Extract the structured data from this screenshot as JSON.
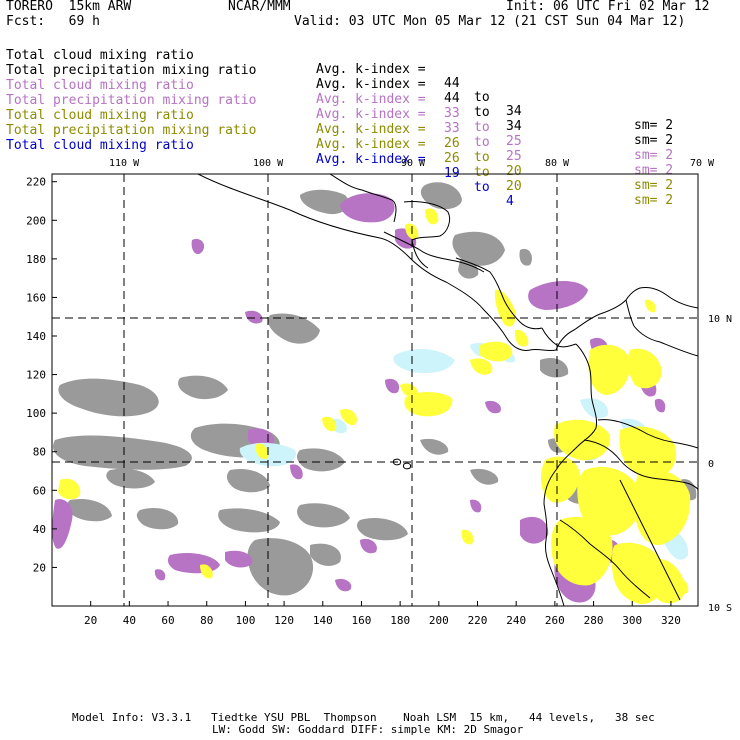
{
  "header": {
    "model": "TORERO  15km ARW",
    "center": "NCAR/MMM",
    "init": "Init: 06 UTC Fri 02 Mar 12",
    "fcst": "Fcst:   69 h",
    "valid": "Valid: 03 UTC Mon 05 Mar 12 (21 CST Sun 04 Mar 12)"
  },
  "legend": [
    {
      "field": "Total cloud mixing ratio",
      "kindex_label": "Avg. k-index =",
      "from": "44",
      "to_word": "to",
      "to": "34",
      "sm": "sm= 2",
      "color": "#000000"
    },
    {
      "field": "Total precipitation mixing ratio",
      "kindex_label": "Avg. k-index =",
      "from": "44",
      "to_word": "to",
      "to": "34",
      "sm": "sm= 2",
      "color": "#000000"
    },
    {
      "field": "Total cloud mixing ratio",
      "kindex_label": "Avg. k-index =",
      "from": "33",
      "to_word": "to",
      "to": "25",
      "sm": "sm= 2",
      "color": "#b773c4"
    },
    {
      "field": "Total precipitation mixing ratio",
      "kindex_label": "Avg. k-index =",
      "from": "33",
      "to_word": "to",
      "to": "25",
      "sm": "sm= 2",
      "color": "#b773c4"
    },
    {
      "field": "Total cloud mixing ratio",
      "kindex_label": "Avg. k-index =",
      "from": "26",
      "to_word": "to",
      "to": "20",
      "sm": "sm= 2",
      "color": "#8c8c00"
    },
    {
      "field": "Total precipitation mixing ratio",
      "kindex_label": "Avg. k-index =",
      "from": "26",
      "to_word": "to",
      "to": "20",
      "sm": "sm= 2",
      "color": "#8c8c00"
    },
    {
      "field": "Total cloud mixing ratio",
      "kindex_label": "Avg. k-index =",
      "from": "19",
      "to_word": "to",
      "to": "4",
      "sm": "",
      "color": "#0000cc"
    }
  ],
  "axes": {
    "lon_labels": [
      "110 W",
      "100 W",
      "90 W",
      "80 W",
      "70 W"
    ],
    "lat_labels": [
      "10 N",
      "0",
      "10 S"
    ],
    "x_ticks": [
      "20",
      "40",
      "60",
      "80",
      "100",
      "120",
      "140",
      "160",
      "180",
      "200",
      "220",
      "240",
      "260",
      "280",
      "300",
      "320"
    ],
    "y_ticks": [
      "220",
      "200",
      "180",
      "160",
      "140",
      "120",
      "100",
      "80",
      "60",
      "40",
      "20"
    ]
  },
  "footer": {
    "line1": "Model Info: V3.3.1   Tiedtke YSU PBL  Thompson    Noah LSM  15 km,   44 levels,   38 sec",
    "line2": "LW: Godd SW: Goddard DIFF: simple KM: 2D Smagor"
  },
  "colors": {
    "gray": "#9a9a9a",
    "purple": "#b773c4",
    "yellow": "#ffff3c",
    "lightblue": "#cdf3fb",
    "coast": "#000000",
    "grid": "#000000"
  }
}
